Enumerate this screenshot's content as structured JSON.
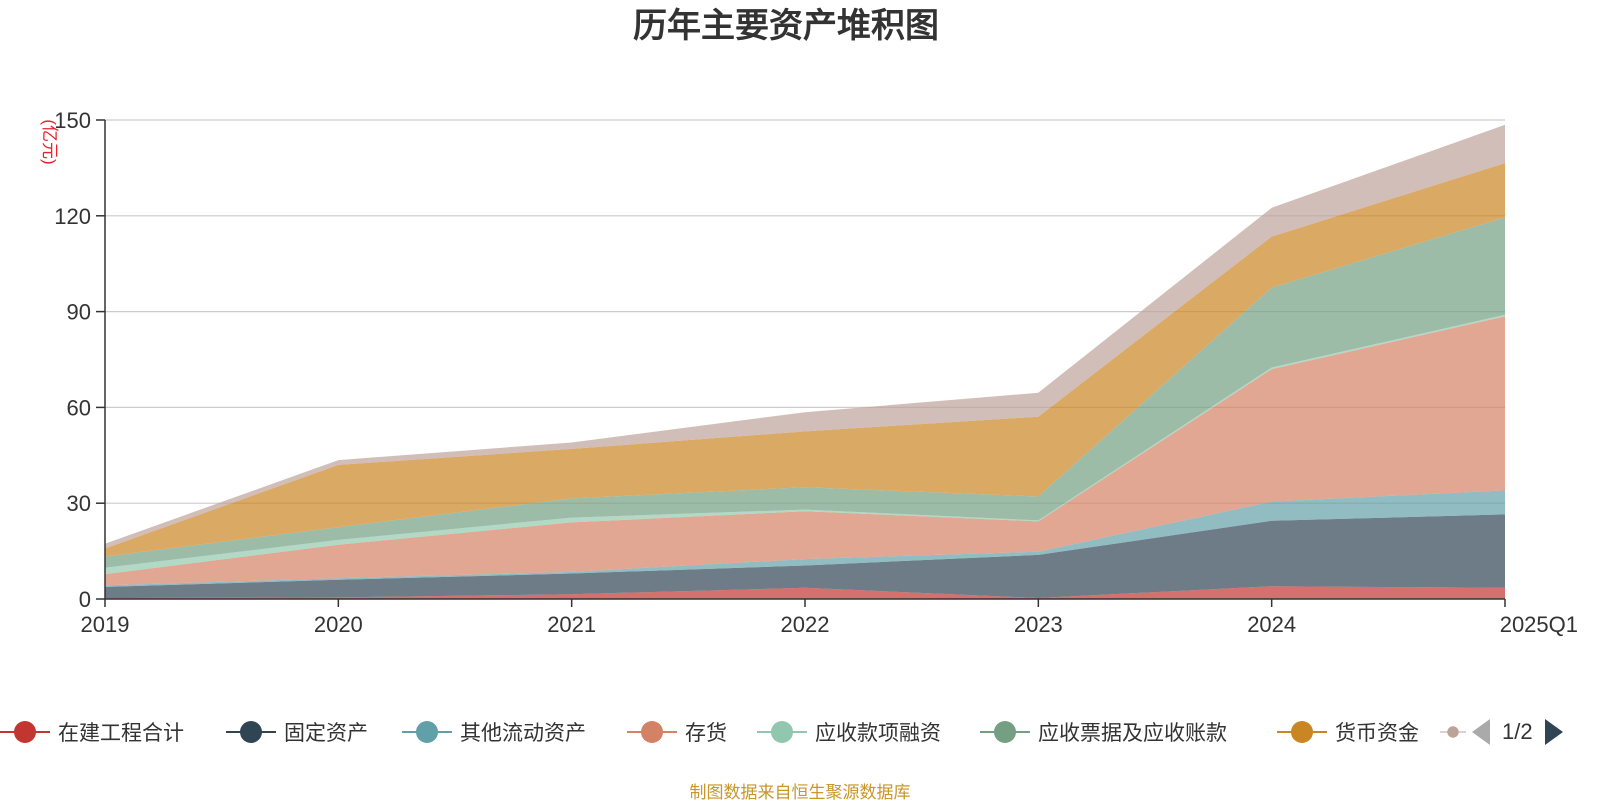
{
  "chart_data": {
    "type": "area",
    "stacked": true,
    "title": "历年主要资产堆积图",
    "ylabel": "(亿元)",
    "categories": [
      "2019",
      "2020",
      "2021",
      "2022",
      "2023",
      "2024",
      "2025Q1"
    ],
    "ylim": [
      0,
      150
    ],
    "yticks": [
      0,
      30,
      60,
      90,
      120,
      150
    ],
    "grid": true,
    "legend_position": "bottom",
    "series": [
      {
        "name": "在建工程合计",
        "color": "#c23531",
        "values": [
          0.3,
          0.5,
          1.5,
          3.5,
          0.3,
          4.0,
          3.5
        ]
      },
      {
        "name": "固定资产",
        "color": "#2f4554",
        "values": [
          3.5,
          5.5,
          6.5,
          7.0,
          13.5,
          20.5,
          23.0
        ]
      },
      {
        "name": "其他流动资产",
        "color": "#61a0a8",
        "values": [
          0.5,
          0.5,
          0.5,
          2.0,
          1.0,
          6.0,
          7.5
        ]
      },
      {
        "name": "存货",
        "color": "#d48265",
        "values": [
          3.5,
          10.5,
          15.5,
          15.0,
          9.5,
          41.5,
          54.5
        ]
      },
      {
        "name": "应收款项融资",
        "color": "#91c7ae",
        "values": [
          2.0,
          1.5,
          1.5,
          0.5,
          0.3,
          0.5,
          0.5
        ]
      },
      {
        "name": "应收票据及应收账款",
        "color": "#749f83",
        "values": [
          3.5,
          4.0,
          6.0,
          7.0,
          7.5,
          25.0,
          30.5
        ]
      },
      {
        "name": "货币资金",
        "color": "#ca8622",
        "values": [
          2.5,
          19.5,
          15.5,
          17.5,
          25.0,
          16.0,
          17.0
        ]
      },
      {
        "name": "",
        "color": "#bda29a",
        "values": [
          1.5,
          1.5,
          2.0,
          6.0,
          7.5,
          9.0,
          12.0
        ]
      }
    ]
  },
  "legend": {
    "items": [
      {
        "label": "在建工程合计",
        "color": "#c23531"
      },
      {
        "label": "固定资产",
        "color": "#2f4554"
      },
      {
        "label": "其他流动资产",
        "color": "#61a0a8"
      },
      {
        "label": "存货",
        "color": "#d48265"
      },
      {
        "label": "应收款项融资",
        "color": "#91c7ae"
      },
      {
        "label": "应收票据及应收账款",
        "color": "#749f83"
      },
      {
        "label": "货币资金",
        "color": "#ca8622"
      }
    ],
    "partial_color": "#bda29a",
    "page_text": "1/2",
    "prev_icon": "triangle-left-icon",
    "next_icon": "triangle-right-icon"
  },
  "source_text": "制图数据来自恒生聚源数据库"
}
